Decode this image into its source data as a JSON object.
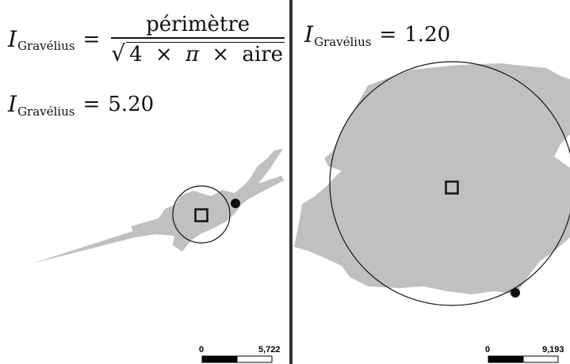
{
  "left_panel": {
    "formula": {
      "symbol": "I",
      "subscript": "Gravélius",
      "equals": "=",
      "numerator": "périmètre",
      "sqrt": "√",
      "four": "4",
      "times": "×",
      "pi": "π",
      "area": "aire"
    },
    "result": {
      "symbol": "I",
      "subscript": "Gravélius",
      "equals": "=",
      "value": "5.20"
    },
    "scale_bar": {
      "min_label": "0",
      "max_label": "5,722"
    }
  },
  "right_panel": {
    "result": {
      "symbol": "I",
      "subscript": "Gravélius",
      "equals": "=",
      "value": "1.20"
    },
    "scale_bar": {
      "min_label": "0",
      "max_label": "9,193"
    }
  },
  "colors": {
    "shape_fill": "#c0c0c0",
    "outline": "#111111",
    "divider": "#333333",
    "background": "#ffffff"
  }
}
